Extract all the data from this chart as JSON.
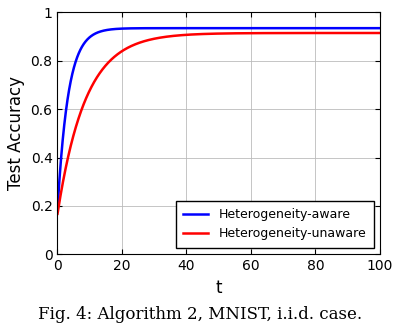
{
  "title": "Fig. 4: Algorithm 2, MNIST, i.i.d. case.",
  "xlabel": "t",
  "ylabel": "Test Accuracy",
  "xlim": [
    0,
    100
  ],
  "ylim": [
    0,
    1.0
  ],
  "xticks": [
    0,
    20,
    40,
    60,
    80,
    100
  ],
  "yticks": [
    0,
    0.2,
    0.4,
    0.6,
    0.8,
    1.0
  ],
  "line1_label": "Heterogeneity-aware",
  "line1_color": "#0000FF",
  "line1_start": 0.175,
  "line1_sat": 0.935,
  "line1_k": 0.3,
  "line2_label": "Heterogeneity-unaware",
  "line2_color": "#FF0000",
  "line2_start": 0.163,
  "line2_sat": 0.915,
  "line2_k": 0.115,
  "background_color": "#FFFFFF",
  "grid_color": "#BBBBBB",
  "linewidth": 1.8,
  "legend_fontsize": 9,
  "axis_label_fontsize": 12,
  "tick_fontsize": 10,
  "title_fontsize": 12,
  "fig_width": 4.0,
  "fig_height": 3.3
}
